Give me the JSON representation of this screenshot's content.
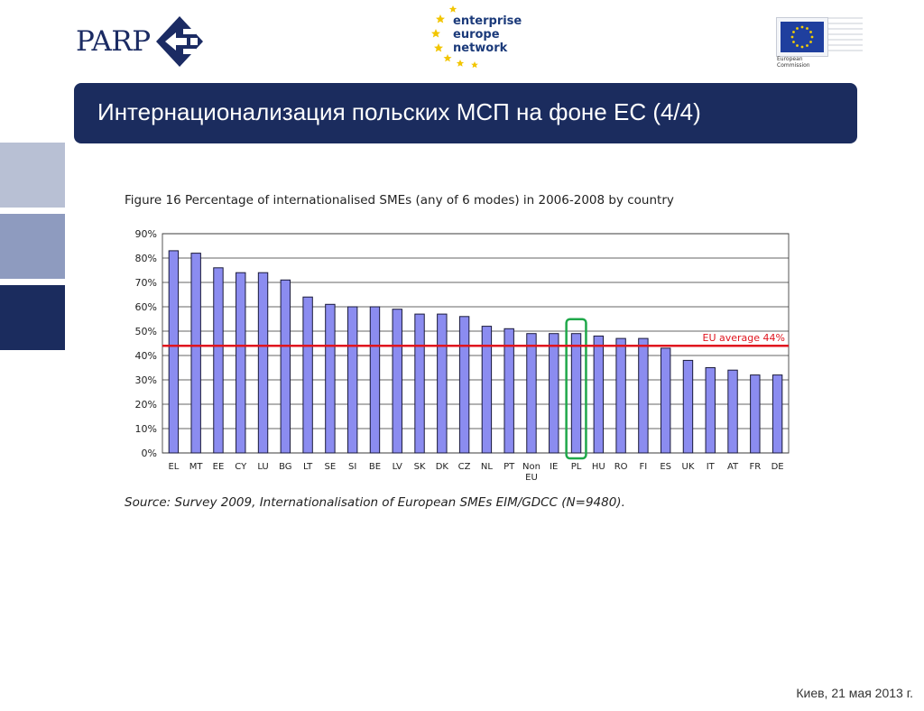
{
  "header": {
    "parp_logo_text": "PARP",
    "een_logo_lines": [
      "enterprise",
      "europe",
      "network"
    ],
    "ec_logo_lines": [
      "European",
      "Commission"
    ]
  },
  "title": "Интернационализация польских МСП на фоне ЕС (4/4)",
  "figure": {
    "caption": "Figure 16   Percentage of internationalised SMEs (any of 6 modes) in 2006-2008 by country",
    "source": "Source: Survey 2009, Internationalisation of European SMEs EIM/GDCC (N=9480)."
  },
  "chart_data": {
    "type": "bar",
    "categories": [
      "EL",
      "MT",
      "EE",
      "CY",
      "LU",
      "BG",
      "LT",
      "SE",
      "SI",
      "BE",
      "LV",
      "SK",
      "DK",
      "CZ",
      "NL",
      "PT",
      "Non EU",
      "IE",
      "PL",
      "HU",
      "RO",
      "FI",
      "ES",
      "UK",
      "IT",
      "AT",
      "FR",
      "DE"
    ],
    "values": [
      83,
      82,
      76,
      74,
      74,
      71,
      64,
      61,
      60,
      60,
      59,
      57,
      57,
      56,
      52,
      51,
      49,
      49,
      49,
      48,
      47,
      47,
      43,
      38,
      35,
      34,
      32,
      32
    ],
    "ylim": [
      0,
      90
    ],
    "yticks": [
      "0%",
      "10%",
      "20%",
      "30%",
      "40%",
      "50%",
      "60%",
      "70%",
      "80%",
      "90%"
    ],
    "grid": true,
    "reference_line": {
      "value": 44,
      "label": "EU average 44%",
      "color": "#e0141e"
    },
    "highlight": {
      "category": "PL",
      "color": "#1fa84a"
    },
    "bar_color": "#8b8cf0"
  },
  "footer": "Киев, 21 мая 2013 г."
}
